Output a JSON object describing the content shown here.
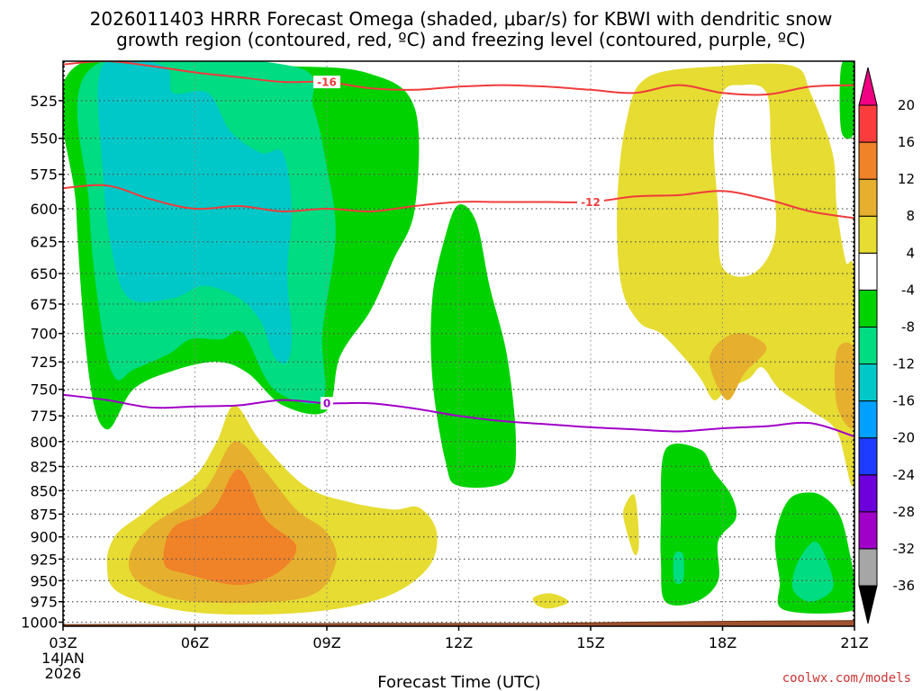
{
  "chart_data": {
    "type": "contour",
    "title_line1": "2026011403 HRRR Forecast Omega (shaded, μbar/s) for KBWI with dendritic snow",
    "title_line2": "growth region (contoured, red, ºC) and freezing level (contoured, purple, ºC)",
    "xlabel": "Forecast Time (UTC)",
    "credit": "coolwx.com/models",
    "x_ticks": [
      {
        "hour": 3,
        "label": "03Z",
        "date_lines": [
          "14JAN",
          "2026"
        ]
      },
      {
        "hour": 6,
        "label": "06Z"
      },
      {
        "hour": 9,
        "label": "09Z"
      },
      {
        "hour": 12,
        "label": "12Z"
      },
      {
        "hour": 15,
        "label": "15Z"
      },
      {
        "hour": 18,
        "label": "18Z"
      },
      {
        "hour": 21,
        "label": "21Z"
      }
    ],
    "y_ticks": [
      {
        "p": 525,
        "label": "525"
      },
      {
        "p": 550,
        "label": "550"
      },
      {
        "p": 575,
        "label": "575"
      },
      {
        "p": 600,
        "label": "600"
      },
      {
        "p": 625,
        "label": "625"
      },
      {
        "p": 650,
        "label": "650"
      },
      {
        "p": 675,
        "label": "675"
      },
      {
        "p": 700,
        "label": "700"
      },
      {
        "p": 725,
        "label": "725"
      },
      {
        "p": 750,
        "label": "750"
      },
      {
        "p": 775,
        "label": "775"
      },
      {
        "p": 800,
        "label": "800"
      },
      {
        "p": 825,
        "label": "825"
      },
      {
        "p": 850,
        "label": "850"
      },
      {
        "p": 875,
        "label": "875"
      },
      {
        "p": 900,
        "label": "900"
      },
      {
        "p": 925,
        "label": "925"
      },
      {
        "p": 950,
        "label": "950"
      },
      {
        "p": 975,
        "label": "975"
      },
      {
        "p": 1000,
        "label": "1000"
      }
    ],
    "xlim": [
      3,
      21
    ],
    "ylim": [
      500,
      1005
    ],
    "y_scale": "log-pressure",
    "grid": true,
    "colorbar": {
      "levels": [
        -36,
        -32,
        -28,
        -24,
        -20,
        -16,
        -12,
        -8,
        -4,
        4,
        8,
        12,
        16,
        20
      ],
      "labels": [
        "-36",
        "-32",
        "-28",
        "-24",
        "-20",
        "-16",
        "-12",
        "-8",
        "-4",
        "4",
        "8",
        "12",
        "16",
        "20"
      ],
      "colors": [
        "#a6a6a6",
        "#a000c8",
        "#6e00dc",
        "#1e3cff",
        "#00a0ff",
        "#00c8c8",
        "#00dc82",
        "#00d200",
        "#ffffff",
        "#e6dc32",
        "#e6af2d",
        "#f08228",
        "#fa3c3c",
        "#f00082"
      ],
      "under_color": "#000000",
      "over_color": "#f00082"
    },
    "shaded_regions": [
      {
        "value": -4,
        "color": "#00d200",
        "points": [
          [
            3.3,
            503
          ],
          [
            8.0,
            503
          ],
          [
            10.0,
            508
          ],
          [
            11.0,
            530
          ],
          [
            11.0,
            600
          ],
          [
            10.5,
            640
          ],
          [
            10.0,
            680
          ],
          [
            9.3,
            720
          ],
          [
            9.0,
            770
          ],
          [
            8.0,
            765
          ],
          [
            7.2,
            735
          ],
          [
            6.5,
            725
          ],
          [
            5.5,
            733
          ],
          [
            4.6,
            750
          ],
          [
            4.0,
            788
          ],
          [
            3.6,
            740
          ],
          [
            3.3,
            600
          ]
        ]
      },
      {
        "value": -8,
        "color": "#00dc82",
        "points": [
          [
            3.7,
            503
          ],
          [
            8.2,
            503
          ],
          [
            8.7,
            530
          ],
          [
            9.0,
            570
          ],
          [
            9.2,
            620
          ],
          [
            8.9,
            700
          ],
          [
            8.9,
            760
          ],
          [
            7.8,
            750
          ],
          [
            7.1,
            700
          ],
          [
            6.6,
            705
          ],
          [
            5.9,
            705
          ],
          [
            5.4,
            718
          ],
          [
            4.6,
            732
          ],
          [
            4.2,
            740
          ],
          [
            3.9,
            700
          ],
          [
            3.6,
            600
          ]
        ]
      },
      {
        "value": -12,
        "color": "#00c8c8",
        "points": [
          [
            3.9,
            503
          ],
          [
            5.3,
            503
          ],
          [
            5.5,
            520
          ],
          [
            6.3,
            520
          ],
          [
            6.8,
            545
          ],
          [
            7.5,
            560
          ],
          [
            8.0,
            560
          ],
          [
            8.2,
            600
          ],
          [
            8.1,
            650
          ],
          [
            8.2,
            700
          ],
          [
            8.1,
            725
          ],
          [
            7.8,
            720
          ],
          [
            7.5,
            690
          ],
          [
            7.0,
            670
          ],
          [
            6.2,
            660
          ],
          [
            5.5,
            670
          ],
          [
            4.5,
            670
          ],
          [
            4.1,
            630
          ],
          [
            3.9,
            570
          ]
        ]
      },
      {
        "value": -4,
        "color": "#00d200",
        "points": [
          [
            12.0,
            597
          ],
          [
            12.4,
            610
          ],
          [
            12.7,
            660
          ],
          [
            13.1,
            720
          ],
          [
            13.3,
            800
          ],
          [
            13.1,
            840
          ],
          [
            12.0,
            845
          ],
          [
            11.7,
            820
          ],
          [
            11.4,
            740
          ],
          [
            11.4,
            670
          ],
          [
            11.7,
            620
          ]
        ]
      },
      {
        "value": -4,
        "color": "#00d200",
        "points": [
          [
            16.7,
            808
          ],
          [
            17.5,
            808
          ],
          [
            17.8,
            830
          ],
          [
            18.2,
            855
          ],
          [
            18.3,
            880
          ],
          [
            17.9,
            905
          ],
          [
            17.9,
            950
          ],
          [
            17.4,
            975
          ],
          [
            16.7,
            975
          ],
          [
            16.6,
            930
          ],
          [
            16.6,
            880
          ]
        ]
      },
      {
        "value": -8,
        "color": "#00dc82",
        "points": [
          [
            16.9,
            920
          ],
          [
            17.1,
            920
          ],
          [
            17.1,
            950
          ],
          [
            16.9,
            950
          ]
        ]
      },
      {
        "value": -4,
        "color": "#00d200",
        "points": [
          [
            19.5,
            860
          ],
          [
            20.0,
            852
          ],
          [
            20.4,
            860
          ],
          [
            20.7,
            880
          ],
          [
            20.9,
            920
          ],
          [
            21.0,
            950
          ],
          [
            21.0,
            985
          ],
          [
            19.4,
            985
          ],
          [
            19.3,
            950
          ],
          [
            19.2,
            900
          ]
        ]
      },
      {
        "value": -8,
        "color": "#00dc82",
        "points": [
          [
            19.7,
            930
          ],
          [
            20.1,
            905
          ],
          [
            20.4,
            930
          ],
          [
            20.5,
            960
          ],
          [
            20.0,
            975
          ],
          [
            19.6,
            960
          ]
        ]
      },
      {
        "value": -4,
        "color": "#00d200",
        "points": [
          [
            20.7,
            503
          ],
          [
            21.0,
            503
          ],
          [
            21.0,
            545
          ],
          [
            20.7,
            545
          ]
        ]
      },
      {
        "value": 4,
        "color": "#e6dc32",
        "points": [
          [
            18.0,
            503
          ],
          [
            19.6,
            503
          ],
          [
            20.0,
            520
          ],
          [
            20.5,
            560
          ],
          [
            20.6,
            600
          ],
          [
            20.8,
            640
          ],
          [
            21.0,
            655
          ],
          [
            21.0,
            840
          ],
          [
            20.6,
            790
          ],
          [
            20.0,
            770
          ],
          [
            19.3,
            750
          ],
          [
            18.9,
            730
          ],
          [
            18.6,
            740
          ],
          [
            18.1,
            750
          ],
          [
            17.8,
            760
          ],
          [
            17.5,
            740
          ],
          [
            17.1,
            720
          ],
          [
            16.6,
            700
          ],
          [
            16.1,
            690
          ],
          [
            15.7,
            660
          ],
          [
            15.6,
            600
          ],
          [
            15.8,
            540
          ],
          [
            16.3,
            510
          ]
        ]
      },
      {
        "value": 4,
        "color": "#e6dc32",
        "points": [
          [
            6.0,
            835
          ],
          [
            6.5,
            800
          ],
          [
            6.9,
            765
          ],
          [
            7.5,
            800
          ],
          [
            8.5,
            845
          ],
          [
            9.5,
            862
          ],
          [
            10.5,
            870
          ],
          [
            11.1,
            868
          ],
          [
            11.5,
            895
          ],
          [
            11.3,
            935
          ],
          [
            10.3,
            970
          ],
          [
            8.5,
            988
          ],
          [
            6.0,
            988
          ],
          [
            4.3,
            965
          ],
          [
            4.0,
            930
          ],
          [
            4.2,
            898
          ],
          [
            4.8,
            875
          ],
          [
            5.2,
            860
          ]
        ]
      },
      {
        "value": 8,
        "color": "#e6af2d",
        "points": [
          [
            6.2,
            850
          ],
          [
            6.9,
            800
          ],
          [
            7.6,
            830
          ],
          [
            8.3,
            870
          ],
          [
            9.0,
            895
          ],
          [
            9.2,
            930
          ],
          [
            8.5,
            970
          ],
          [
            6.0,
            975
          ],
          [
            4.8,
            955
          ],
          [
            4.5,
            925
          ],
          [
            5.0,
            888
          ]
        ]
      },
      {
        "value": 12,
        "color": "#f08228",
        "points": [
          [
            6.4,
            870
          ],
          [
            7.0,
            828
          ],
          [
            7.6,
            880
          ],
          [
            8.3,
            910
          ],
          [
            7.9,
            940
          ],
          [
            7.0,
            955
          ],
          [
            5.8,
            942
          ],
          [
            5.3,
            930
          ],
          [
            5.5,
            890
          ]
        ]
      },
      {
        "value": 8,
        "color": "#e6af2d",
        "points": [
          [
            18.0,
            705
          ],
          [
            18.5,
            700
          ],
          [
            19.0,
            713
          ],
          [
            18.5,
            735
          ],
          [
            18.1,
            760
          ],
          [
            17.7,
            725
          ]
        ]
      },
      {
        "value": 8,
        "color": "#e6af2d",
        "points": [
          [
            20.6,
            715
          ],
          [
            21.0,
            715
          ],
          [
            21.0,
            785
          ],
          [
            20.6,
            765
          ]
        ]
      },
      {
        "value": 4,
        "color": "#e6dc32",
        "points": [
          [
            16.0,
            855
          ],
          [
            16.1,
            905
          ],
          [
            16.0,
            920
          ],
          [
            15.8,
            890
          ],
          [
            15.75,
            870
          ]
        ]
      },
      {
        "value": 4,
        "color": "#e6dc32",
        "points": [
          [
            13.7,
            970
          ],
          [
            14.1,
            965
          ],
          [
            14.5,
            975
          ],
          [
            14.1,
            983
          ],
          [
            13.8,
            980
          ]
        ]
      },
      {
        "value": -4,
        "color": "#ffffff",
        "points": [
          [
            18.0,
            520
          ],
          [
            18.4,
            515
          ],
          [
            19.0,
            520
          ],
          [
            19.1,
            560
          ],
          [
            19.2,
            620
          ],
          [
            18.7,
            650
          ],
          [
            18.0,
            645
          ],
          [
            17.9,
            600
          ],
          [
            17.8,
            550
          ]
        ]
      }
    ],
    "contours": [
      {
        "value": -16,
        "label": "-16",
        "color": "#f03c3c",
        "label_x": 9.0,
        "points": [
          [
            3,
            502
          ],
          [
            4,
            500
          ],
          [
            5,
            503
          ],
          [
            6,
            507
          ],
          [
            7,
            510
          ],
          [
            8,
            513
          ],
          [
            9,
            513
          ],
          [
            10,
            517
          ],
          [
            11,
            518
          ],
          [
            12,
            516
          ],
          [
            13,
            515
          ],
          [
            14,
            516
          ],
          [
            15,
            518
          ],
          [
            16,
            520
          ],
          [
            17,
            515
          ],
          [
            18,
            520
          ],
          [
            19,
            521
          ],
          [
            20,
            516
          ],
          [
            21,
            515
          ]
        ]
      },
      {
        "value": -12,
        "label": "-12",
        "color": "#f03c3c",
        "label_x": 15.0,
        "points": [
          [
            3,
            585
          ],
          [
            4,
            583
          ],
          [
            5,
            593
          ],
          [
            6,
            600
          ],
          [
            7,
            598
          ],
          [
            8,
            602
          ],
          [
            9,
            600
          ],
          [
            10,
            602
          ],
          [
            11,
            598
          ],
          [
            12,
            595
          ],
          [
            13,
            595
          ],
          [
            14,
            595
          ],
          [
            15,
            595
          ],
          [
            16,
            591
          ],
          [
            17,
            590
          ],
          [
            18,
            587
          ],
          [
            19,
            593
          ],
          [
            20,
            602
          ],
          [
            21,
            607
          ]
        ]
      },
      {
        "value": 0,
        "label": "0",
        "color": "#a000c8",
        "label_x": 9.0,
        "points": [
          [
            3,
            755
          ],
          [
            4,
            760
          ],
          [
            5,
            767
          ],
          [
            6,
            766
          ],
          [
            7,
            765
          ],
          [
            8,
            760
          ],
          [
            9,
            763
          ],
          [
            10,
            763
          ],
          [
            11,
            768
          ],
          [
            12,
            775
          ],
          [
            13,
            780
          ],
          [
            14,
            783
          ],
          [
            15,
            786
          ],
          [
            16,
            788
          ],
          [
            17,
            790
          ],
          [
            18,
            787
          ],
          [
            19,
            785
          ],
          [
            20,
            782
          ],
          [
            21,
            795
          ]
        ]
      }
    ],
    "terrain": {
      "color": "#a0522d",
      "points": [
        [
          3,
          1003
        ],
        [
          8,
          1002
        ],
        [
          10,
          1001.5
        ],
        [
          14,
          1001.5
        ],
        [
          16,
          1000
        ],
        [
          18,
          999
        ],
        [
          21,
          998
        ]
      ]
    }
  }
}
